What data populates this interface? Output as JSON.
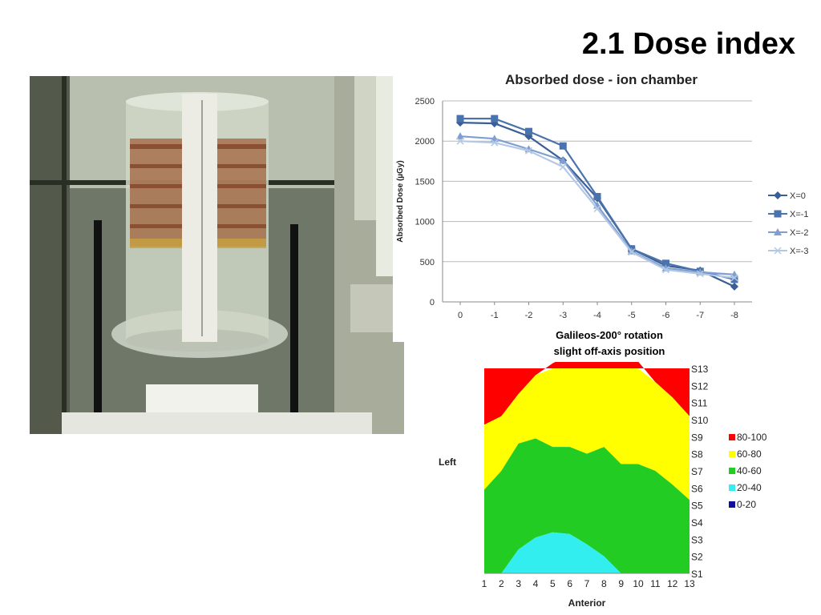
{
  "slide": {
    "title": "2.1 Dose index"
  },
  "photo": {
    "description_icon": "phantom-photo-icon"
  },
  "line_caption": {
    "line1": "Galileos-200° rotation",
    "line2": "slight off-axis position"
  },
  "chart_data": [
    {
      "type": "line",
      "title": "Absorbed dose - ion chamber",
      "xlabel": "",
      "ylabel": "Absorbed Dose (µGy)",
      "categories": [
        "0",
        "-1",
        "-2",
        "-3",
        "-4",
        "-5",
        "-6",
        "-7",
        "-8"
      ],
      "ylim": [
        0,
        2500
      ],
      "yticks": [
        0,
        500,
        1000,
        1500,
        2000,
        2500
      ],
      "grid": true,
      "legend": "right",
      "series": [
        {
          "name": "X=0",
          "color": "#3a5f96",
          "marker": "diamond",
          "values": [
            2230,
            2220,
            2060,
            1760,
            1290,
            660,
            450,
            390,
            190
          ]
        },
        {
          "name": "X=-1",
          "color": "#4a72ad",
          "marker": "square",
          "values": [
            2280,
            2280,
            2120,
            1940,
            1310,
            660,
            480,
            380,
            280
          ]
        },
        {
          "name": "X=-2",
          "color": "#7f9fd0",
          "marker": "triangle",
          "values": [
            2060,
            2030,
            1900,
            1760,
            1200,
            630,
            420,
            370,
            340
          ]
        },
        {
          "name": "X=-3",
          "color": "#b4c8e6",
          "marker": "cross",
          "values": [
            2000,
            1980,
            1880,
            1680,
            1160,
            620,
            400,
            350,
            300
          ]
        }
      ]
    },
    {
      "type": "area",
      "title": "",
      "xlabel": "Anterior",
      "ylabel": "Left",
      "x": [
        1,
        2,
        3,
        4,
        5,
        6,
        7,
        8,
        9,
        10,
        11,
        12,
        13
      ],
      "series_labels": [
        "S1",
        "S2",
        "S3",
        "S4",
        "S5",
        "S6",
        "S7",
        "S8",
        "S9",
        "S10",
        "S11",
        "S12",
        "S13"
      ],
      "legend": "right",
      "bands": [
        {
          "name": "80-100",
          "color": "#ff0000"
        },
        {
          "name": "60-80",
          "color": "#ffff00"
        },
        {
          "name": "40-60",
          "color": "#22cc22"
        },
        {
          "name": "20-40",
          "color": "#33eeee"
        },
        {
          "name": "0-20",
          "color": "#1010a0"
        }
      ],
      "boundaries": {
        "red_yellow": [
          8.7,
          9.2,
          10.5,
          11.6,
          12.3,
          12.8,
          12.7,
          13.1,
          12.4,
          12.4,
          11.2,
          10.3,
          9.2
        ],
        "yellow_green": [
          4.9,
          6.0,
          7.6,
          7.9,
          7.4,
          7.4,
          7.0,
          7.4,
          6.4,
          6.4,
          6.0,
          5.2,
          4.3
        ],
        "green_cyan": [
          0.0,
          0.0,
          1.4,
          2.1,
          2.4,
          2.3,
          1.7,
          1.0,
          0.0,
          0.0,
          0.0,
          0.0,
          0.0
        ]
      }
    }
  ]
}
